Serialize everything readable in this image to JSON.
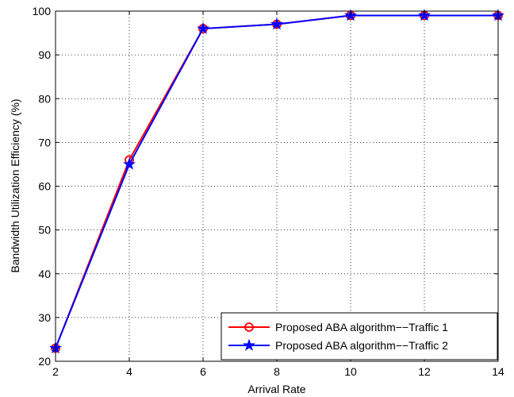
{
  "chart_data": {
    "type": "line",
    "title": "",
    "xlabel": "Arrival Rate",
    "ylabel": "Bandwidth Utilization Efficiency (%)",
    "x": [
      2,
      4,
      6,
      8,
      10,
      12,
      14
    ],
    "xlim": [
      2,
      14
    ],
    "ylim": [
      20,
      100
    ],
    "xticks": [
      "2",
      "4",
      "6",
      "8",
      "10",
      "12",
      "14"
    ],
    "yticks": [
      "20",
      "30",
      "40",
      "50",
      "60",
      "70",
      "80",
      "90",
      "100"
    ],
    "grid": "dotted",
    "legend_position": "bottom-right",
    "series": [
      {
        "name": "Proposed ABA algorithm−−Traffic 1",
        "values": [
          23,
          66,
          96,
          97,
          99,
          99,
          99
        ],
        "color": "#ff0000",
        "marker": "circle"
      },
      {
        "name": "Proposed ABA algorithm−−Traffic 2",
        "values": [
          23,
          65,
          96,
          97,
          99,
          99,
          99
        ],
        "color": "#0000ff",
        "marker": "star"
      }
    ]
  }
}
